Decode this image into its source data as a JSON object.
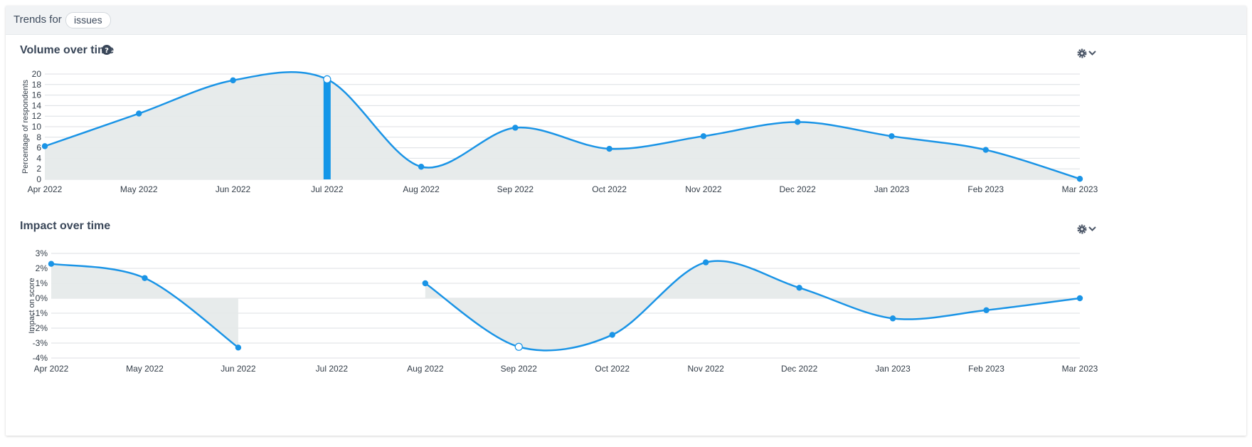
{
  "header": {
    "trends_label": "Trends for",
    "topic_pill": "issues"
  },
  "charts": {
    "volume": {
      "title": "Volume over time",
      "help_icon": "question-circle-icon",
      "settings_icon": "gear-icon",
      "dropdown_icon": "chevron-down-icon"
    },
    "impact": {
      "title": "Impact over time",
      "settings_icon": "gear-icon",
      "dropdown_icon": "chevron-down-icon"
    }
  },
  "colors": {
    "line": "#1a94e6",
    "area": "#e6eaea",
    "highlight_bar": "#1396e8",
    "grid": "#dcdfe3"
  },
  "chart_data": [
    {
      "type": "area",
      "title": "Volume over time",
      "ylabel": "Percentage of respondents",
      "xlabel": "",
      "categories": [
        "Apr 2022",
        "May 2022",
        "Jun 2022",
        "Jul 2022",
        "Aug 2022",
        "Sep 2022",
        "Oct 2022",
        "Nov 2022",
        "Dec 2022",
        "Jan 2023",
        "Feb 2023",
        "Mar 2023"
      ],
      "values": [
        6.3,
        12.5,
        18.8,
        19.0,
        2.4,
        9.8,
        5.8,
        8.2,
        10.9,
        8.2,
        5.6,
        0.1
      ],
      "ylim": [
        0,
        20
      ],
      "yticks": [
        "0",
        "2",
        "4",
        "6",
        "8",
        "10",
        "12",
        "14",
        "16",
        "18",
        "20"
      ],
      "highlighted_category": "Jul 2022",
      "grid": true
    },
    {
      "type": "area",
      "title": "Impact over time",
      "ylabel": "Impact on score",
      "xlabel": "",
      "categories": [
        "Apr 2022",
        "May 2022",
        "Jun 2022",
        "Jul 2022",
        "Aug 2022",
        "Sep 2022",
        "Oct 2022",
        "Nov 2022",
        "Dec 2022",
        "Jan 2023",
        "Feb 2023",
        "Mar 2023"
      ],
      "values": [
        2.3,
        1.35,
        -3.3,
        null,
        1.0,
        -3.25,
        -2.45,
        2.4,
        0.7,
        -1.35,
        -0.8,
        0.0
      ],
      "ylim": [
        -4,
        3
      ],
      "yticks": [
        "-4%",
        "-3%",
        "-2%",
        "-1%",
        "0%",
        "1%",
        "2%",
        "3%"
      ],
      "hollow_point_category": "Sep 2022",
      "grid": true
    }
  ]
}
